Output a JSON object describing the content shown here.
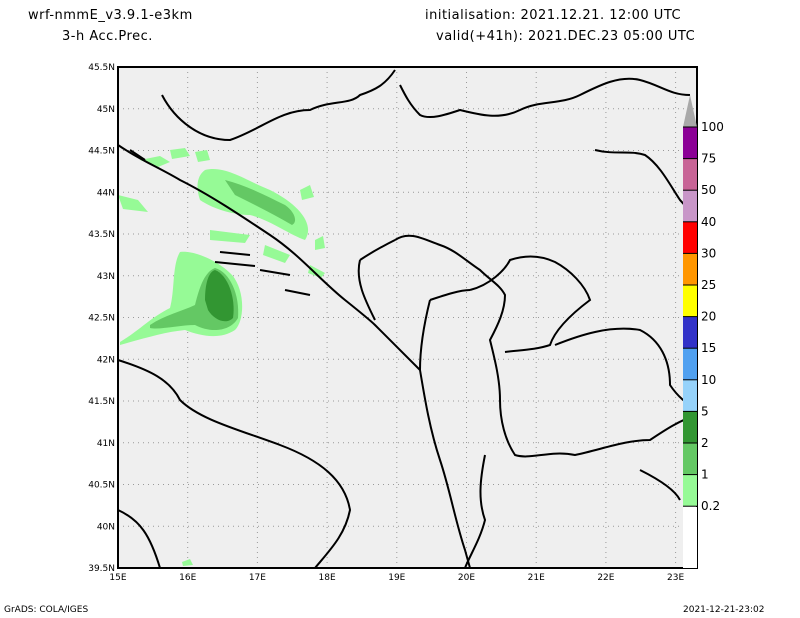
{
  "header": {
    "model": "wrf-nmmE_v3.9.1-e3km",
    "field": "3-h Acc.Prec.",
    "init": "initialisation: 2021.12.21.  12:00 UTC",
    "valid": "valid(+41h): 2021.DEC.23 05:00 UTC"
  },
  "axes": {
    "lat_labels": [
      "45.5N",
      "45N",
      "44.5N",
      "44N",
      "43.5N",
      "43N",
      "42.5N",
      "42N",
      "41.5N",
      "41N",
      "40.5N",
      "40N",
      "39.5N"
    ],
    "lon_labels": [
      "15E",
      "16E",
      "17E",
      "18E",
      "19E",
      "20E",
      "21E",
      "22E",
      "23E"
    ]
  },
  "colorbar": {
    "over_color": "#a9a9a9",
    "levels": [
      {
        "label": "100",
        "color": "#8b0096"
      },
      {
        "label": "75",
        "color": "#c86496"
      },
      {
        "label": "50",
        "color": "#c896c8"
      },
      {
        "label": "40",
        "color": "#ff0000"
      },
      {
        "label": "30",
        "color": "#ff9600"
      },
      {
        "label": "25",
        "color": "#ffff00"
      },
      {
        "label": "20",
        "color": "#3232c8"
      },
      {
        "label": "15",
        "color": "#50a0f0"
      },
      {
        "label": "10",
        "color": "#96d2fa"
      },
      {
        "label": "5",
        "color": "#329632"
      },
      {
        "label": "2",
        "color": "#64c864"
      },
      {
        "label": "1",
        "color": "#96fa96"
      },
      {
        "label": "0.2",
        "color": ""
      }
    ]
  },
  "footer": {
    "left": "GrADS: COLA/IGES",
    "right": "2021-12-21-23:02"
  }
}
